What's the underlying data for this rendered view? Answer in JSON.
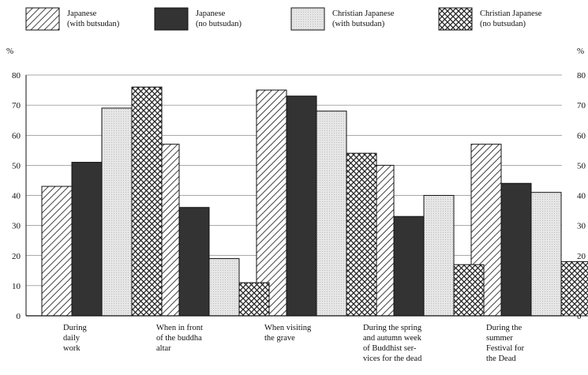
{
  "chart_data": {
    "type": "bar",
    "title": "",
    "xlabel": "",
    "ylabel": "%",
    "ylim": [
      0,
      80
    ],
    "yticks": [
      0,
      10,
      20,
      30,
      40,
      50,
      60,
      70,
      80
    ],
    "grid": true,
    "legend_position": "top",
    "categories": [
      "During\ndaily\nwork",
      "When in front\nof the buddha\naltar",
      "When visiting\nthe grave",
      "During the spring\nand autumn week\nof Buddhist ser-\nvices for the dead",
      "During the\nsummer\nFestival for\nthe Dead"
    ],
    "series": [
      {
        "name": "Japanese\n(with butsudan)",
        "pattern": "diagonal-hatch",
        "color": "#ffffff",
        "values": [
          43,
          57,
          75,
          50,
          57
        ]
      },
      {
        "name": "Japanese\n(no butsudan)",
        "pattern": "solid-dark",
        "color": "#333333",
        "values": [
          51,
          36,
          73,
          33,
          44
        ]
      },
      {
        "name": "Christian Japanese\n(with butsudan)",
        "pattern": "light-stipple",
        "color": "#e2e2e2",
        "values": [
          69,
          19,
          68,
          40,
          41
        ]
      },
      {
        "name": "Christian Japanese\n(no butsudan)",
        "pattern": "crosshatch",
        "color": "#ffffff",
        "values": [
          76,
          11,
          54,
          17,
          18
        ]
      }
    ]
  }
}
